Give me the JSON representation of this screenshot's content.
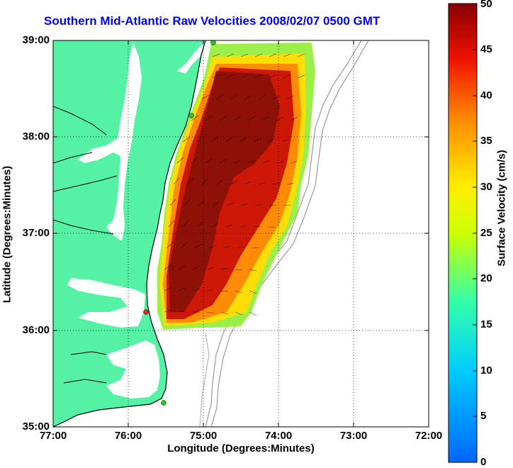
{
  "title": "Southern Mid-Atlantic Raw Velocities 2008/02/07 0500 GMT",
  "axes": {
    "xlabel": "Longitude (Degrees:Minutes)",
    "ylabel": "Latitude (Degrees:Minutes)",
    "x_ticks": [
      "77:00",
      "76:00",
      "75:00",
      "74:00",
      "73:00",
      "72:00"
    ],
    "y_ticks": [
      "39:00",
      "38:00",
      "37:00",
      "36:00",
      "35:00"
    ],
    "x_range": [
      -77,
      -72
    ],
    "y_range": [
      35,
      39
    ],
    "grid": "dotted"
  },
  "colorbar": {
    "label": "Surface Velocity (cm/s)",
    "ticks": [
      "50",
      "45",
      "40",
      "35",
      "30",
      "25",
      "20",
      "15",
      "10",
      "5",
      "0"
    ],
    "range": [
      0,
      50
    ],
    "colormap": "jet"
  },
  "colors": {
    "land": "#55f2a6",
    "title": "#0000ee",
    "station_active": "#22cc22",
    "station_inactive": "#ee2222"
  },
  "stations": [
    {
      "status": "active",
      "lon": -74.9,
      "lat": 39.0
    },
    {
      "status": "active",
      "lon": -75.15,
      "lat": 38.2
    },
    {
      "status": "inactive",
      "lon": -75.75,
      "lat": 36.18
    },
    {
      "status": "active",
      "lon": -75.52,
      "lat": 35.25
    }
  ]
}
